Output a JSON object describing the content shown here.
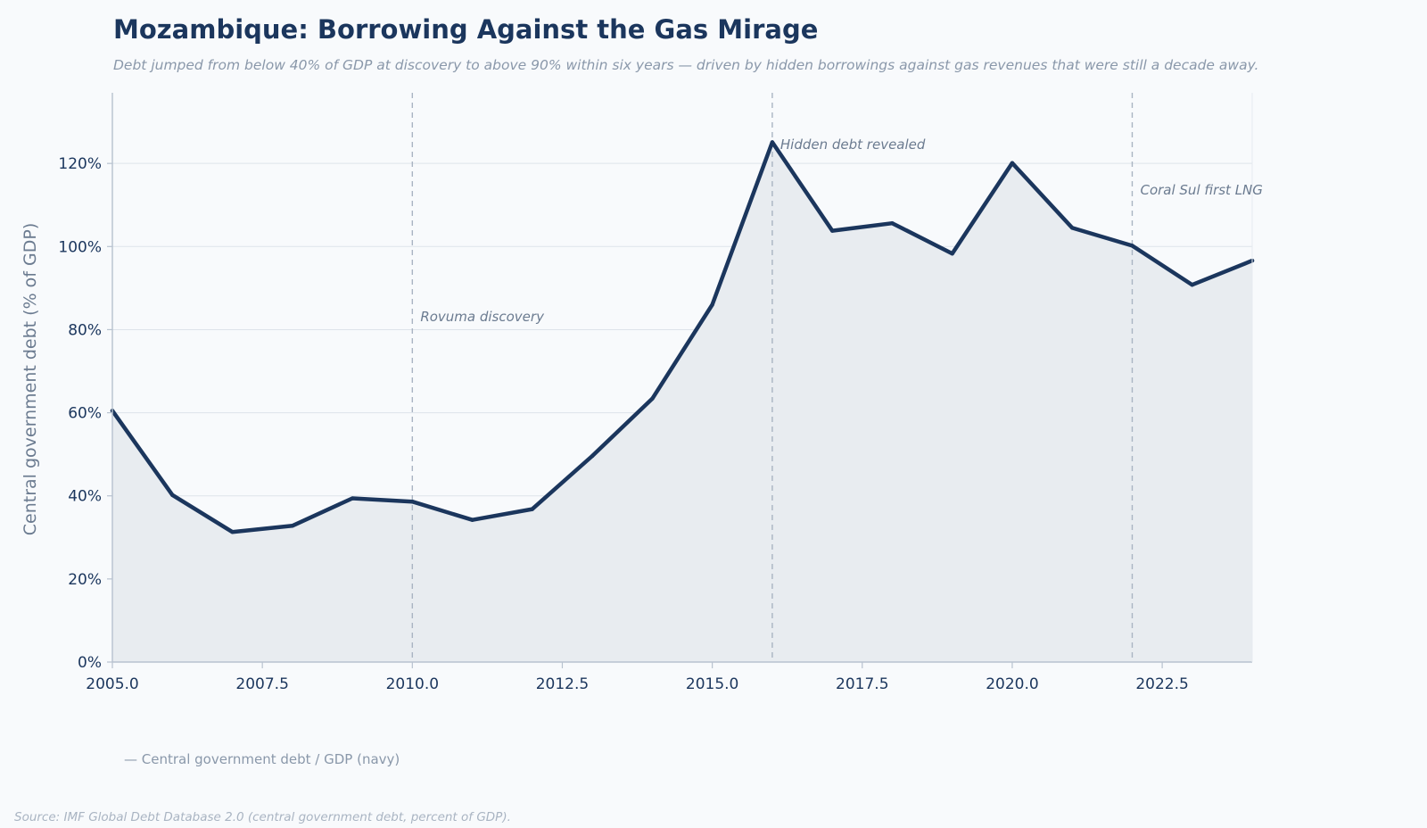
{
  "header": {
    "title": "Mozambique: Borrowing Against the Gas Mirage",
    "subtitle": "Debt jumped from below 40% of GDP at discovery to above 90% within six years — driven by hidden borrowings against gas revenues that were still a decade away."
  },
  "legend": {
    "label": "— Central government debt / GDP (navy)"
  },
  "footer": {
    "source": "Source: IMF Global Debt Database 2.0 (central government debt, percent of GDP)."
  },
  "colors": {
    "line": "#1b365d",
    "area_fill": "#e8ecf0",
    "grid": "#dde3ea",
    "axis": "#b7c2cf",
    "vline": "#a9b4c2"
  },
  "chart_data": {
    "type": "area",
    "title": "Mozambique: Borrowing Against the Gas Mirage",
    "xlabel": "",
    "ylabel": "Central government debt (% of GDP)",
    "xlim": [
      2005,
      2024
    ],
    "ylim": [
      0,
      137
    ],
    "x_ticks": [
      2005.0,
      2007.5,
      2010.0,
      2012.5,
      2015.0,
      2017.5,
      2020.0,
      2022.5
    ],
    "x_tick_labels": [
      "2005.0",
      "2007.5",
      "2010.0",
      "2012.5",
      "2015.0",
      "2017.5",
      "2020.0",
      "2022.5"
    ],
    "y_ticks": [
      0,
      20,
      40,
      60,
      80,
      100,
      120
    ],
    "y_tick_labels": [
      "0%",
      "20%",
      "40%",
      "60%",
      "80%",
      "100%",
      "120%"
    ],
    "grid": true,
    "series": [
      {
        "name": "Central government debt / GDP",
        "x": [
          2005,
          2006,
          2007,
          2008,
          2009,
          2010,
          2011,
          2012,
          2013,
          2014,
          2015,
          2016,
          2017,
          2018,
          2019,
          2020,
          2021,
          2022,
          2023,
          2024
        ],
        "y": [
          60.5,
          40.2,
          31.3,
          32.8,
          39.4,
          38.6,
          34.2,
          36.8,
          49.6,
          63.4,
          86.0,
          125.1,
          103.8,
          105.6,
          98.3,
          120.1,
          104.5,
          100.2,
          90.8,
          96.6
        ]
      }
    ],
    "annotations": [
      {
        "x": 2010,
        "text": "Rovuma discovery",
        "label_y": 82
      },
      {
        "x": 2016,
        "text": "Hidden debt revealed",
        "label_y": 123.5
      },
      {
        "x": 2022,
        "text": "Coral Sul first LNG",
        "label_y": 112.5
      }
    ]
  }
}
